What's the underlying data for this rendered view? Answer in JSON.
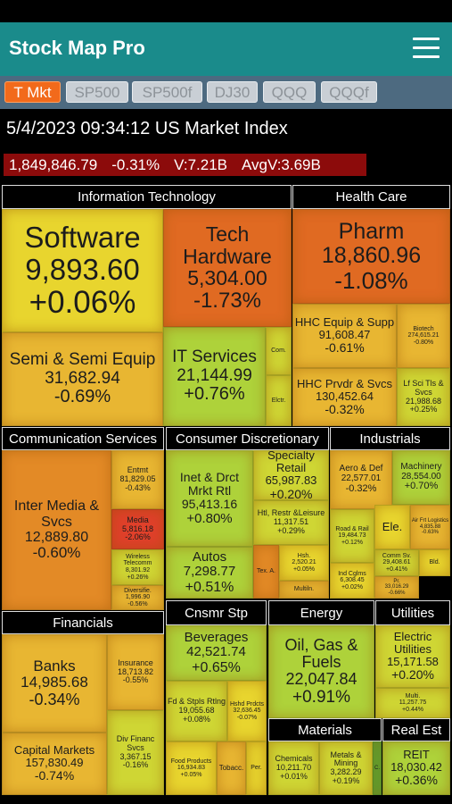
{
  "app": {
    "title": "Stock Map Pro",
    "tabs": [
      "T Mkt",
      "SP500",
      "SP500f",
      "DJ30",
      "QQQ",
      "QQQf"
    ]
  },
  "header": {
    "timestamp": "5/4/2023 09:34:12 US Market Index",
    "index_value": "1,849,846.79",
    "change": "-0.31%",
    "volume": "V:7.21B",
    "avg_volume": "AvgV:3.69B"
  },
  "sectors": [
    {
      "name": "Information Technology",
      "tiles": [
        {
          "name": "Software",
          "value": "9,893.60",
          "change": "+0.06%"
        },
        {
          "name": "Semi & Semi Equip",
          "value": "31,682.94",
          "change": "-0.69%"
        },
        {
          "name": "Tech Hardware",
          "value": "5,304.00",
          "change": "-1.73%"
        },
        {
          "name": "IT Services",
          "value": "21,144.99",
          "change": "+0.76%"
        },
        {
          "name": "Com."
        },
        {
          "name": "Elctr."
        }
      ]
    },
    {
      "name": "Health Care",
      "tiles": [
        {
          "name": "Pharm",
          "value": "18,860.96",
          "change": "-1.08%"
        },
        {
          "name": "HHC Equip & Supp",
          "value": "91,608.47",
          "change": "-0.61%"
        },
        {
          "name": "Biotech",
          "value": "274,615.21",
          "change": "-0.80%"
        },
        {
          "name": "HHC Prvdr & Svcs",
          "value": "130,452.64",
          "change": "-0.32%"
        },
        {
          "name": "Lf Sci Tls & Svcs",
          "value": "21,988.68",
          "change": "+0.25%"
        }
      ]
    },
    {
      "name": "Communication Services",
      "tiles": [
        {
          "name": "Inter Media & Svcs",
          "value": "12,889.80",
          "change": "-0.60%"
        },
        {
          "name": "Entmt",
          "value": "81,829.05",
          "change": "-0.43%"
        },
        {
          "name": "Media",
          "value": "5,816.18",
          "change": "-2.06%"
        },
        {
          "name": "Wireless Telecomm",
          "value": "8,301.92",
          "change": "+0.26%"
        },
        {
          "name": "Diversifie.",
          "value": "1,996.90",
          "change": "-0.56%"
        }
      ]
    },
    {
      "name": "Consumer Discretionary",
      "tiles": [
        {
          "name": "Inet & Drct Mrkt Rtl",
          "value": "95,413.16",
          "change": "+0.80%"
        },
        {
          "name": "Specialty Retail",
          "value": "65,987.83",
          "change": "+0.20%"
        },
        {
          "name": "Htl, Restr &Leisure",
          "value": "11,317.51",
          "change": "+0.29%"
        },
        {
          "name": "Autos",
          "value": "7,298.77",
          "change": "+0.51%"
        },
        {
          "name": "Tex. A."
        },
        {
          "name": "Hsh.",
          "value": "2,520.21",
          "change": "+0.05%"
        },
        {
          "name": "Multiln."
        }
      ]
    },
    {
      "name": "Industrials",
      "tiles": [
        {
          "name": "Aero & Def",
          "value": "22,577.01",
          "change": "-0.32%"
        },
        {
          "name": "Machinery",
          "value": "28,554.00",
          "change": "+0.70%"
        },
        {
          "name": "Road & Rail",
          "value": "19,484.73",
          "change": "+0.12%"
        },
        {
          "name": "Ele."
        },
        {
          "name": "Air Frt Logistics",
          "value": "4,835.88",
          "change": "-0.63%"
        },
        {
          "name": "Ind Cglms",
          "value": "6,308.45",
          "change": "+0.02%"
        },
        {
          "name": "Comm Sv.",
          "value": "29,408.61",
          "change": "+0.41%"
        },
        {
          "name": "Bld."
        },
        {
          "name": "Pr.",
          "value": "33,016.29",
          "change": "-0.66%"
        }
      ]
    },
    {
      "name": "Financials",
      "tiles": [
        {
          "name": "Banks",
          "value": "14,985.68",
          "change": "-0.34%"
        },
        {
          "name": "Capital Markets",
          "value": "157,830.49",
          "change": "-0.74%"
        },
        {
          "name": "Insurance",
          "value": "18,713.82",
          "change": "-0.55%"
        },
        {
          "name": "Div Financ Svcs",
          "value": "3,367.15",
          "change": "-0.16%"
        }
      ]
    },
    {
      "name": "Cnsmr Stp",
      "tiles": [
        {
          "name": "Beverages",
          "value": "42,521.74",
          "change": "+0.65%"
        },
        {
          "name": "Fd & Stpls Rtlng",
          "value": "19,055.68",
          "change": "+0.08%"
        },
        {
          "name": "Hshd Prdcts",
          "value": "32,636.45",
          "change": "-0.07%"
        },
        {
          "name": "Food Products",
          "value": "16,934.83",
          "change": "+0.05%"
        },
        {
          "name": "Tobacc."
        },
        {
          "name": "Per."
        }
      ]
    },
    {
      "name": "Energy",
      "tiles": [
        {
          "name": "Oil, Gas & Fuels",
          "value": "22,047.84",
          "change": "+0.91%"
        }
      ]
    },
    {
      "name": "Utilities",
      "tiles": [
        {
          "name": "Electric Utilities",
          "value": "15,171.58",
          "change": "+0.20%"
        },
        {
          "name": "Multi.",
          "value": "11,257.75",
          "change": "+0.44%"
        }
      ]
    },
    {
      "name": "Materials",
      "tiles": [
        {
          "name": "Chemicals",
          "value": "10,211.70",
          "change": "+0.01%"
        },
        {
          "name": "Metals & Mining",
          "value": "3,282.29",
          "change": "+0.19%"
        },
        {
          "name": "C."
        }
      ]
    },
    {
      "name": "Real Est",
      "tiles": [
        {
          "name": "REIT",
          "value": "18,030.42",
          "change": "+0.36%"
        }
      ]
    }
  ]
}
